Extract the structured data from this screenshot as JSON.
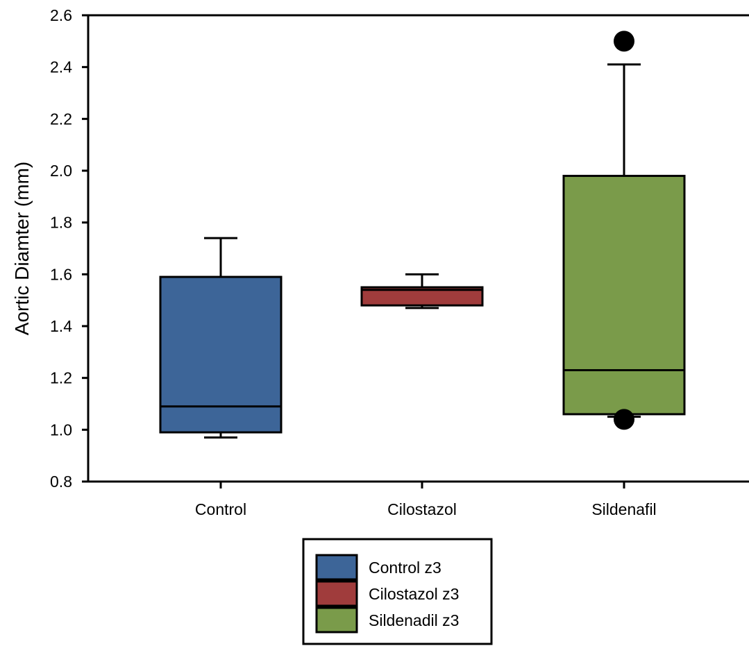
{
  "chart_data": {
    "type": "boxplot",
    "title": "",
    "xlabel": "",
    "ylabel": "Aortic Diamter (mm)",
    "ylim": [
      0.8,
      2.6
    ],
    "yticks": [
      0.8,
      1.0,
      1.2,
      1.4,
      1.6,
      1.8,
      2.0,
      2.2,
      2.4,
      2.6
    ],
    "ytick_labels": [
      "0.8",
      "1.0",
      "1.2",
      "1.4",
      "1.6",
      "1.8",
      "2.0",
      "2.2",
      "2.4",
      "2.6"
    ],
    "grid": false,
    "legend_placement": "bottom-center",
    "categories": [
      "Control",
      "Cilostazol",
      "Sildenafil"
    ],
    "series": [
      {
        "name": "Control z3",
        "color": "#3d6598",
        "whisker_low": 0.97,
        "q1": 0.99,
        "median": 1.09,
        "q3": 1.59,
        "whisker_high": 1.74,
        "outliers": []
      },
      {
        "name": "Cilostazol z3",
        "color": "#a03c3c",
        "whisker_low": 1.47,
        "q1": 1.48,
        "median": 1.54,
        "q3": 1.55,
        "whisker_high": 1.6,
        "outliers": []
      },
      {
        "name": "Sildenadil z3",
        "color": "#7a9b4a",
        "whisker_low": 1.05,
        "q1": 1.06,
        "median": 1.23,
        "q3": 1.98,
        "whisker_high": 2.41,
        "outliers": [
          2.5,
          1.04
        ]
      }
    ]
  }
}
